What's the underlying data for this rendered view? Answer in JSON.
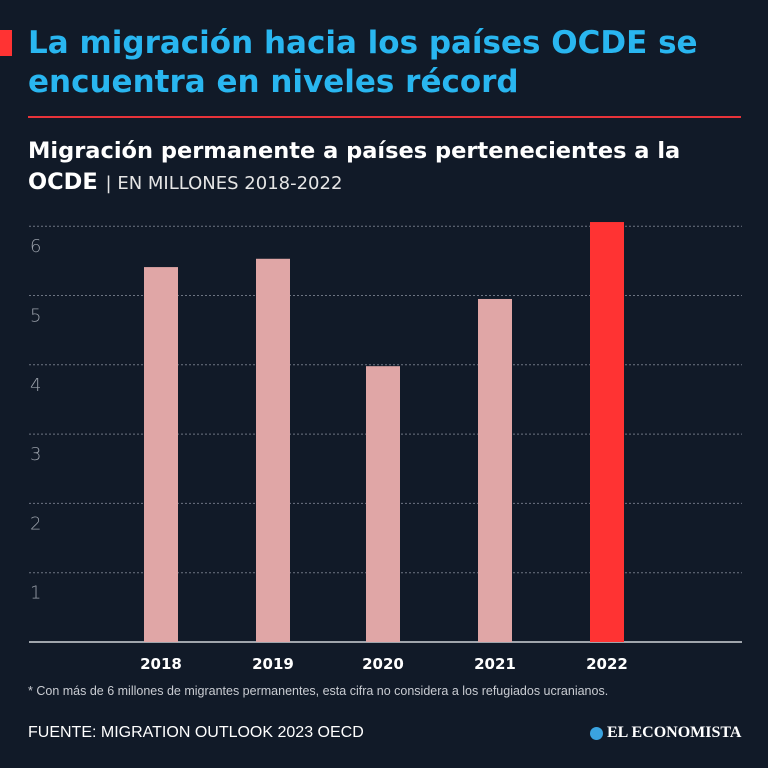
{
  "headline": "La migración hacia los países OCDE se encuentra en niveles récord",
  "subtitle": "Migración permanente a países pertenecientes a la OCDE",
  "subtitle_unit": "| EN MILLONES 2018-2022",
  "note": "* Con más de 6 millones de migrantes permanentes, esta cifra no considera a los refugiados ucranianos.",
  "source": "FUENTE: MIGRATION OUTLOOK 2023 OECD",
  "logo_text": "EL ECONOMISTA",
  "colors": {
    "background": "#111a28",
    "headline": "#29b6f0",
    "bar": "#e0a6a6",
    "highlight": "#ff3333"
  },
  "chart_data": {
    "type": "bar",
    "title": "Migración permanente a países pertenecientes a la OCDE",
    "categories": [
      "2018",
      "2019",
      "2020",
      "2021",
      "2022"
    ],
    "values": [
      5.41,
      5.53,
      3.98,
      4.95,
      6.06
    ],
    "highlight": "2022",
    "ylim": [
      0,
      6.2
    ],
    "yticks": [
      1,
      2,
      3,
      4,
      5,
      6
    ],
    "grid": true,
    "xlabel": "",
    "ylabel": ""
  }
}
